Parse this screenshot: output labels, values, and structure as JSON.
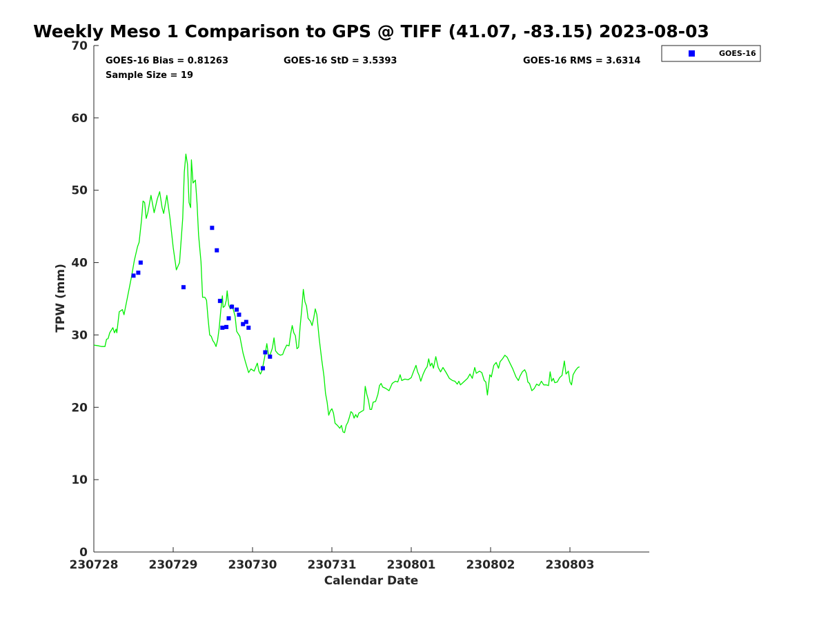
{
  "chart_data": {
    "type": "scatter",
    "title": "Weekly Meso 1 Comparison to GPS @ TIFF (41.07, -83.15) 2023-08-03",
    "xlabel": "Calendar Date",
    "ylabel": "TPW (mm)",
    "xlim_days": [
      0,
      7.0
    ],
    "ylim": [
      0,
      70
    ],
    "x_ticks": [
      {
        "day": 0,
        "label": "230728"
      },
      {
        "day": 1,
        "label": "230729"
      },
      {
        "day": 2,
        "label": "230730"
      },
      {
        "day": 3,
        "label": "230731"
      },
      {
        "day": 4,
        "label": "230801"
      },
      {
        "day": 5,
        "label": "230802"
      },
      {
        "day": 6,
        "label": "230803"
      }
    ],
    "y_ticks": [
      0,
      10,
      20,
      30,
      40,
      50,
      60,
      70
    ],
    "stats": {
      "bias": "GOES-16 Bias = 0.81263",
      "std": "GOES-16 StD = 3.5393",
      "rms": "GOES-16 RMS = 3.6314",
      "sample": "Sample Size = 19"
    },
    "legend": {
      "position": "top-right-outside",
      "entries": [
        {
          "name": "GOES-16",
          "color": "#0000ff",
          "marker": "square"
        }
      ]
    },
    "grid": false,
    "colors": {
      "gps_line": "#00ee00",
      "goes16": "#0000ff"
    },
    "series": [
      {
        "name": "GPS",
        "type": "line",
        "points": [
          [
            0.0,
            28.6
          ],
          [
            0.06,
            28.5
          ],
          [
            0.1,
            28.4
          ],
          [
            0.14,
            28.4
          ],
          [
            0.16,
            29.4
          ],
          [
            0.18,
            29.5
          ],
          [
            0.2,
            30.3
          ],
          [
            0.24,
            31.0
          ],
          [
            0.26,
            30.3
          ],
          [
            0.28,
            30.8
          ],
          [
            0.29,
            30.3
          ],
          [
            0.32,
            33.2
          ],
          [
            0.36,
            33.5
          ],
          [
            0.38,
            32.8
          ],
          [
            0.42,
            35.0
          ],
          [
            0.47,
            37.8
          ],
          [
            0.51,
            40.3
          ],
          [
            0.55,
            42.2
          ],
          [
            0.57,
            42.8
          ],
          [
            0.6,
            45.8
          ],
          [
            0.62,
            48.5
          ],
          [
            0.64,
            48.3
          ],
          [
            0.66,
            46.1
          ],
          [
            0.68,
            46.9
          ],
          [
            0.72,
            49.3
          ],
          [
            0.74,
            48.1
          ],
          [
            0.76,
            46.9
          ],
          [
            0.8,
            48.8
          ],
          [
            0.83,
            49.8
          ],
          [
            0.86,
            47.6
          ],
          [
            0.88,
            46.8
          ],
          [
            0.92,
            49.3
          ],
          [
            0.96,
            46.1
          ],
          [
            1.0,
            42.1
          ],
          [
            1.04,
            39.0
          ],
          [
            1.08,
            40.0
          ],
          [
            1.12,
            46.1
          ],
          [
            1.14,
            52.5
          ],
          [
            1.16,
            55.0
          ],
          [
            1.18,
            53.6
          ],
          [
            1.2,
            48.3
          ],
          [
            1.22,
            47.6
          ],
          [
            1.23,
            54.2
          ],
          [
            1.25,
            51.0
          ],
          [
            1.28,
            51.4
          ],
          [
            1.3,
            48.3
          ],
          [
            1.32,
            43.8
          ],
          [
            1.35,
            40.1
          ],
          [
            1.37,
            35.2
          ],
          [
            1.4,
            35.2
          ],
          [
            1.42,
            34.8
          ],
          [
            1.44,
            32.2
          ],
          [
            1.46,
            30.0
          ],
          [
            1.48,
            29.8
          ],
          [
            1.5,
            29.2
          ],
          [
            1.52,
            28.9
          ],
          [
            1.54,
            28.4
          ],
          [
            1.56,
            29.3
          ],
          [
            1.58,
            31.0
          ],
          [
            1.6,
            33.4
          ],
          [
            1.62,
            35.4
          ],
          [
            1.63,
            33.8
          ],
          [
            1.65,
            34.0
          ],
          [
            1.67,
            34.8
          ],
          [
            1.68,
            36.1
          ],
          [
            1.7,
            34.1
          ],
          [
            1.72,
            33.6
          ],
          [
            1.74,
            34.2
          ],
          [
            1.76,
            33.4
          ],
          [
            1.78,
            32.6
          ],
          [
            1.8,
            30.5
          ],
          [
            1.84,
            29.8
          ],
          [
            1.88,
            27.5
          ],
          [
            1.91,
            26.3
          ],
          [
            1.95,
            24.8
          ],
          [
            1.98,
            25.3
          ],
          [
            2.02,
            25.0
          ],
          [
            2.06,
            26.1
          ],
          [
            2.08,
            25.0
          ],
          [
            2.1,
            24.6
          ],
          [
            2.12,
            25.1
          ],
          [
            2.15,
            26.8
          ],
          [
            2.18,
            28.8
          ],
          [
            2.2,
            27.3
          ],
          [
            2.22,
            27.2
          ],
          [
            2.25,
            28.2
          ],
          [
            2.27,
            29.6
          ],
          [
            2.29,
            27.8
          ],
          [
            2.32,
            27.4
          ],
          [
            2.35,
            27.2
          ],
          [
            2.38,
            27.3
          ],
          [
            2.4,
            27.9
          ],
          [
            2.43,
            28.6
          ],
          [
            2.46,
            28.5
          ],
          [
            2.48,
            30.1
          ],
          [
            2.5,
            31.3
          ],
          [
            2.52,
            30.3
          ],
          [
            2.54,
            29.9
          ],
          [
            2.56,
            28.1
          ],
          [
            2.58,
            28.3
          ],
          [
            2.6,
            31.2
          ],
          [
            2.62,
            33.5
          ],
          [
            2.64,
            36.3
          ],
          [
            2.66,
            34.6
          ],
          [
            2.68,
            34.0
          ],
          [
            2.7,
            32.3
          ],
          [
            2.73,
            31.9
          ],
          [
            2.75,
            31.3
          ],
          [
            2.77,
            32.3
          ],
          [
            2.79,
            33.6
          ],
          [
            2.81,
            32.8
          ],
          [
            2.84,
            29.5
          ],
          [
            2.87,
            26.7
          ],
          [
            2.9,
            24.3
          ],
          [
            2.92,
            21.9
          ],
          [
            2.94,
            20.7
          ],
          [
            2.96,
            18.9
          ],
          [
            2.98,
            19.5
          ],
          [
            3.0,
            19.8
          ],
          [
            3.02,
            19.2
          ],
          [
            3.04,
            17.8
          ],
          [
            3.07,
            17.5
          ],
          [
            3.1,
            17.1
          ],
          [
            3.12,
            17.5
          ],
          [
            3.14,
            16.6
          ],
          [
            3.16,
            16.5
          ],
          [
            3.18,
            17.5
          ],
          [
            3.2,
            17.9
          ],
          [
            3.22,
            18.6
          ],
          [
            3.24,
            19.4
          ],
          [
            3.26,
            19.2
          ],
          [
            3.28,
            18.5
          ],
          [
            3.3,
            19.0
          ],
          [
            3.32,
            18.6
          ],
          [
            3.34,
            19.2
          ],
          [
            3.37,
            19.4
          ],
          [
            3.4,
            19.6
          ],
          [
            3.42,
            22.9
          ],
          [
            3.44,
            21.8
          ],
          [
            3.46,
            21.0
          ],
          [
            3.48,
            19.7
          ],
          [
            3.5,
            19.7
          ],
          [
            3.52,
            20.7
          ],
          [
            3.55,
            20.8
          ],
          [
            3.58,
            21.8
          ],
          [
            3.6,
            23.0
          ],
          [
            3.62,
            23.3
          ],
          [
            3.64,
            22.8
          ],
          [
            3.68,
            22.6
          ],
          [
            3.72,
            22.3
          ],
          [
            3.76,
            23.3
          ],
          [
            3.8,
            23.6
          ],
          [
            3.83,
            23.5
          ],
          [
            3.86,
            24.5
          ],
          [
            3.88,
            23.7
          ],
          [
            3.92,
            23.9
          ],
          [
            3.96,
            23.8
          ],
          [
            4.0,
            24.1
          ],
          [
            4.03,
            25.0
          ],
          [
            4.06,
            25.8
          ],
          [
            4.08,
            24.9
          ],
          [
            4.1,
            24.4
          ],
          [
            4.12,
            23.6
          ],
          [
            4.15,
            24.6
          ],
          [
            4.18,
            25.3
          ],
          [
            4.2,
            25.6
          ],
          [
            4.22,
            26.7
          ],
          [
            4.24,
            25.7
          ],
          [
            4.26,
            26.1
          ],
          [
            4.28,
            25.4
          ],
          [
            4.31,
            27.0
          ],
          [
            4.34,
            25.5
          ],
          [
            4.37,
            24.9
          ],
          [
            4.4,
            25.5
          ],
          [
            4.44,
            24.8
          ],
          [
            4.48,
            24.0
          ],
          [
            4.52,
            23.7
          ],
          [
            4.55,
            23.6
          ],
          [
            4.58,
            23.2
          ],
          [
            4.6,
            23.6
          ],
          [
            4.62,
            23.1
          ],
          [
            4.65,
            23.4
          ],
          [
            4.68,
            23.7
          ],
          [
            4.71,
            24.0
          ],
          [
            4.74,
            24.6
          ],
          [
            4.77,
            24.0
          ],
          [
            4.8,
            25.5
          ],
          [
            4.82,
            24.7
          ],
          [
            4.86,
            25.0
          ],
          [
            4.89,
            24.8
          ],
          [
            4.92,
            23.7
          ],
          [
            4.94,
            23.5
          ],
          [
            4.96,
            21.7
          ],
          [
            4.99,
            24.5
          ],
          [
            5.01,
            24.2
          ],
          [
            5.04,
            25.8
          ],
          [
            5.07,
            26.2
          ],
          [
            5.1,
            25.4
          ],
          [
            5.12,
            26.3
          ],
          [
            5.15,
            26.7
          ],
          [
            5.18,
            27.2
          ],
          [
            5.21,
            26.9
          ],
          [
            5.24,
            26.2
          ],
          [
            5.28,
            25.3
          ],
          [
            5.32,
            24.2
          ],
          [
            5.35,
            23.7
          ],
          [
            5.37,
            24.3
          ],
          [
            5.4,
            24.9
          ],
          [
            5.43,
            25.2
          ],
          [
            5.45,
            24.7
          ],
          [
            5.47,
            23.5
          ],
          [
            5.49,
            23.3
          ],
          [
            5.52,
            22.3
          ],
          [
            5.55,
            22.6
          ],
          [
            5.58,
            23.2
          ],
          [
            5.61,
            23.0
          ],
          [
            5.64,
            23.6
          ],
          [
            5.67,
            23.1
          ],
          [
            5.7,
            23.1
          ],
          [
            5.73,
            23.0
          ],
          [
            5.75,
            24.9
          ],
          [
            5.77,
            23.6
          ],
          [
            5.79,
            24.0
          ],
          [
            5.81,
            23.4
          ],
          [
            5.84,
            23.5
          ],
          [
            5.87,
            24.1
          ],
          [
            5.9,
            24.4
          ],
          [
            5.93,
            26.4
          ],
          [
            5.95,
            24.6
          ],
          [
            5.98,
            25.0
          ],
          [
            6.0,
            23.5
          ],
          [
            6.02,
            23.1
          ],
          [
            6.04,
            24.5
          ],
          [
            6.07,
            25.1
          ],
          [
            6.1,
            25.5
          ],
          [
            6.12,
            25.6
          ]
        ]
      },
      {
        "name": "GOES-16",
        "type": "scatter",
        "points": [
          [
            0.5,
            38.2
          ],
          [
            0.56,
            38.6
          ],
          [
            0.59,
            40.0
          ],
          [
            1.13,
            36.6
          ],
          [
            1.49,
            44.8
          ],
          [
            1.55,
            41.7
          ],
          [
            1.59,
            34.7
          ],
          [
            1.62,
            31.0
          ],
          [
            1.67,
            31.1
          ],
          [
            1.7,
            32.3
          ],
          [
            1.74,
            33.9
          ],
          [
            1.8,
            33.5
          ],
          [
            1.83,
            32.8
          ],
          [
            1.88,
            31.5
          ],
          [
            1.92,
            31.8
          ],
          [
            1.95,
            31.0
          ],
          [
            2.13,
            25.4
          ],
          [
            2.16,
            27.6
          ],
          [
            2.22,
            27.0
          ]
        ]
      }
    ]
  }
}
